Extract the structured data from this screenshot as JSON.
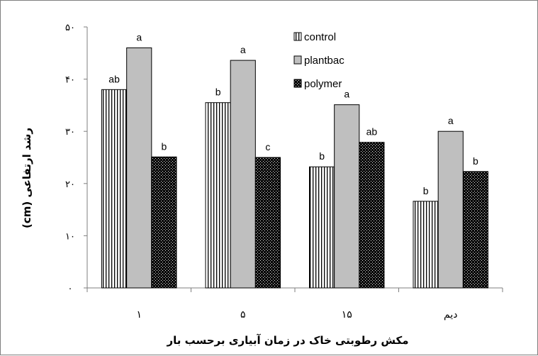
{
  "chart_data": {
    "type": "bar",
    "categories": [
      "١",
      "۵",
      "۱۵",
      "دیم"
    ],
    "series": [
      {
        "name": "control",
        "values": [
          38,
          35.5,
          23.2,
          16.6
        ],
        "labels": [
          "ab",
          "b",
          "b",
          "b"
        ],
        "pattern": "vertical-stripes",
        "color": "#ffffff"
      },
      {
        "name": "plantbac",
        "values": [
          46,
          43.6,
          35.1,
          30
        ],
        "labels": [
          "a",
          "a",
          "a",
          "a"
        ],
        "pattern": "solid",
        "color": "#bfbfbf"
      },
      {
        "name": "polymer",
        "values": [
          25.1,
          25,
          27.9,
          22.3
        ],
        "labels": [
          "b",
          "c",
          "ab",
          "b"
        ],
        "pattern": "dotted-dark",
        "color": "#000000"
      }
    ],
    "yticks": [
      0,
      10,
      20,
      30,
      40,
      50
    ],
    "yticklabels": [
      "۰",
      "۱۰",
      "۲۰",
      "۳۰",
      "۴۰",
      "۵۰"
    ],
    "ylim": [
      0,
      50
    ],
    "xlabel": "مکش رطوبتی خاک در زمان آبیاری برحسب بار",
    "ylabel": "رشد ارتفاعی (cm)",
    "legend_position": "top-right",
    "grid": false
  }
}
